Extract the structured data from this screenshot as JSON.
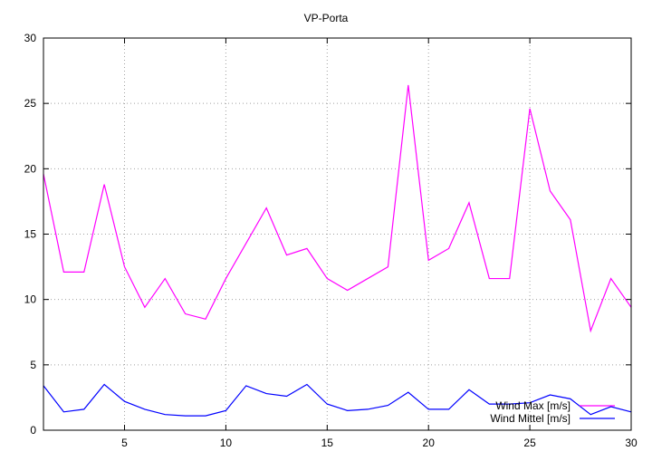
{
  "chart_data": {
    "type": "line",
    "title": "VP-Porta",
    "xlabel": "",
    "ylabel": "",
    "xlim": [
      1,
      30
    ],
    "ylim": [
      0,
      30
    ],
    "xticks": [
      5,
      10,
      15,
      20,
      25,
      30
    ],
    "yticks": [
      0,
      5,
      10,
      15,
      20,
      25,
      30
    ],
    "grid": true,
    "legend_position": "bottom-right",
    "x": [
      1,
      2,
      3,
      4,
      5,
      6,
      7,
      8,
      9,
      10,
      11,
      12,
      13,
      14,
      15,
      16,
      17,
      18,
      19,
      20,
      21,
      22,
      23,
      24,
      25,
      26,
      27,
      28,
      29,
      30
    ],
    "series": [
      {
        "name": "Wind Max [m/s]",
        "color": "#ff00ff",
        "values": [
          19.6,
          12.1,
          12.1,
          18.8,
          12.5,
          9.4,
          11.6,
          8.9,
          8.5,
          11.6,
          14.3,
          17.0,
          13.4,
          13.9,
          11.6,
          10.7,
          11.6,
          12.5,
          26.4,
          13.0,
          13.9,
          17.4,
          11.6,
          11.6,
          24.6,
          18.3,
          16.1,
          7.6,
          11.6,
          9.4
        ]
      },
      {
        "name": "Wind Mittel [m/s]",
        "color": "#0000ff",
        "values": [
          3.4,
          1.4,
          1.6,
          3.5,
          2.2,
          1.6,
          1.2,
          1.1,
          1.1,
          1.5,
          3.4,
          2.8,
          2.6,
          3.5,
          2.0,
          1.5,
          1.6,
          1.9,
          2.9,
          1.6,
          1.6,
          3.1,
          2.0,
          2.0,
          2.1,
          2.7,
          2.4,
          1.2,
          1.8,
          1.4
        ]
      }
    ]
  }
}
